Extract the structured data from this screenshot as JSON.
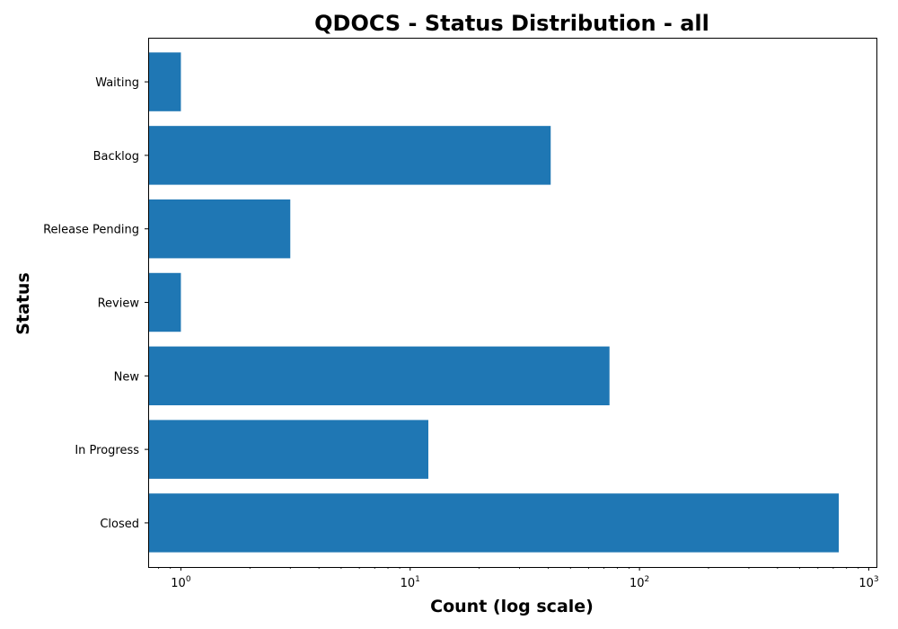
{
  "chart_data": {
    "type": "bar",
    "orientation": "horizontal",
    "title": "QDOCS - Status Distribution - all",
    "xlabel": "Count (log scale)",
    "ylabel": "Status",
    "xscale": "log",
    "xlim": [
      0.72,
      1080
    ],
    "x_ticks": [
      {
        "value": 1,
        "base": "10",
        "exp": "0"
      },
      {
        "value": 10,
        "base": "10",
        "exp": "1"
      },
      {
        "value": 100,
        "base": "10",
        "exp": "2"
      },
      {
        "value": 1000,
        "base": "10",
        "exp": "3"
      }
    ],
    "categories": [
      "Closed",
      "In Progress",
      "New",
      "Review",
      "Release Pending",
      "Backlog",
      "Waiting"
    ],
    "values": [
      740,
      12,
      74,
      1,
      3,
      41,
      1
    ],
    "bar_color": "#1f77b4",
    "grid": false,
    "legend": "none"
  }
}
